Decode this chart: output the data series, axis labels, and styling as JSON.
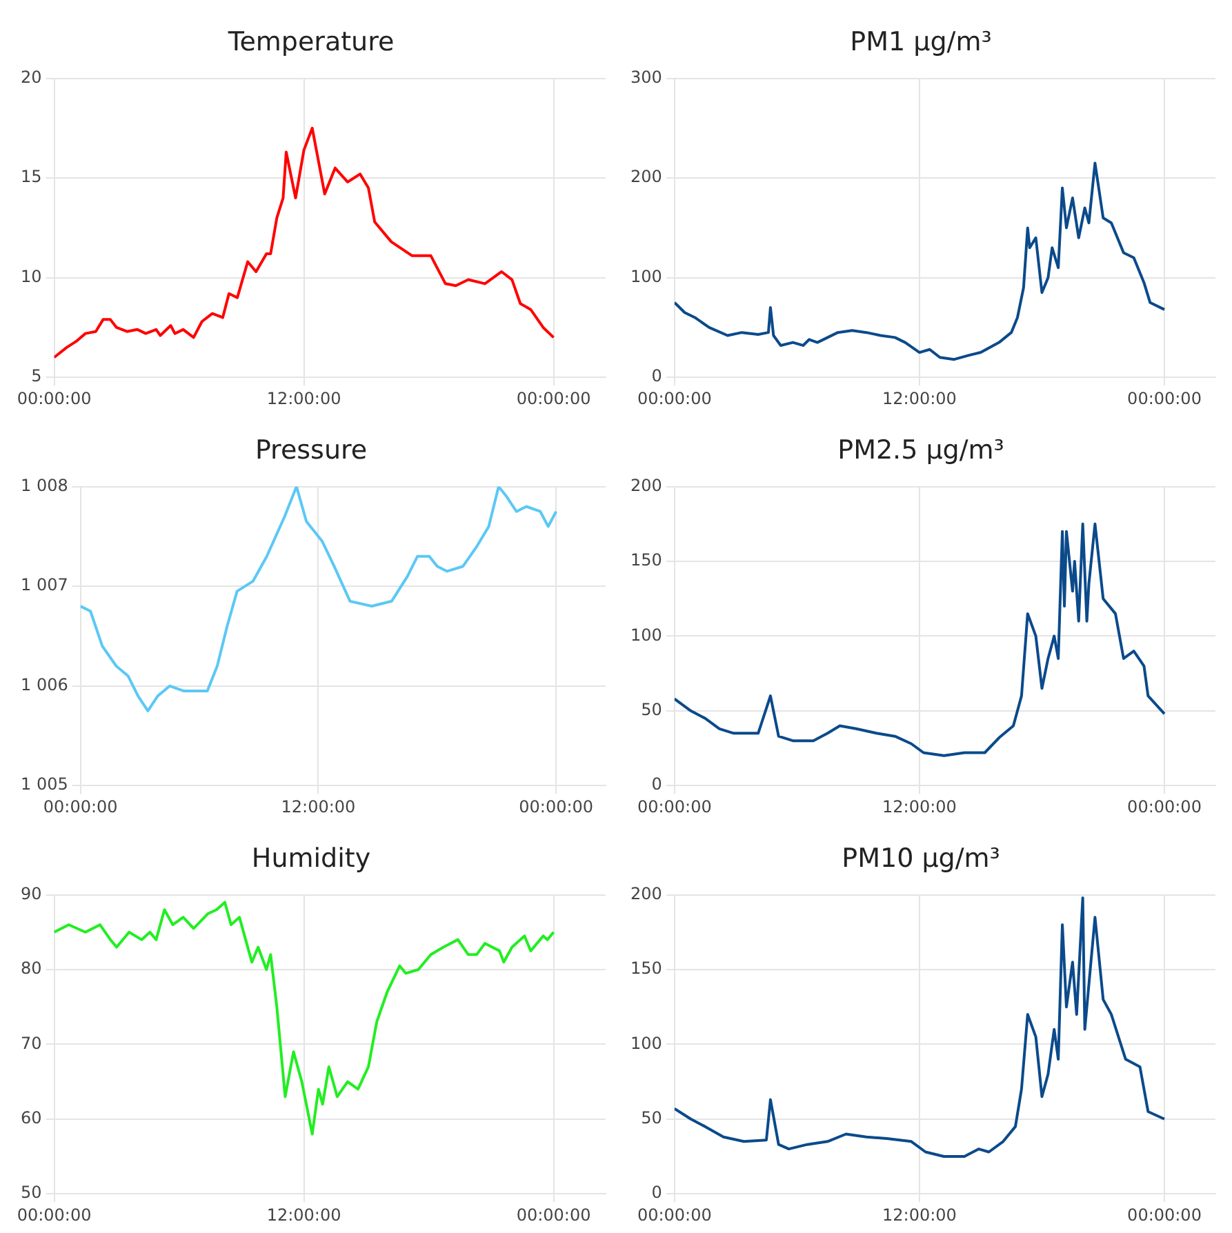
{
  "chart_data": [
    {
      "type": "line",
      "title": "Temperature",
      "marker": "none",
      "grid": true,
      "xlim": [
        "--01-01T00:00",
        "--01-02T02:30"
      ],
      "xticks": [
        {
          "value": "--01-01T00:00",
          "label": "00:00:00"
        },
        {
          "value": "--01-01T12:00",
          "label": "12:00:00"
        },
        {
          "value": "--01-02T00:00",
          "label": "00:00:00"
        }
      ],
      "ylim": [
        5,
        20
      ],
      "yticks": [
        5,
        10,
        15,
        20
      ],
      "x": [
        "--01-01T00:00",
        "--01-01T00:36",
        "--01-01T01:03",
        "--01-01T01:30",
        "--01-01T02:00",
        "--01-01T02:21",
        "--01-01T02:42",
        "--01-01T03:00",
        "--01-01T03:30",
        "--01-01T04:00",
        "--01-01T04:24",
        "--01-01T04:54",
        "--01-01T05:06",
        "--01-01T05:36",
        "--01-01T05:48",
        "--01-01T06:12",
        "--01-01T06:42",
        "--01-01T07:06",
        "--01-01T07:36",
        "--01-01T08:06",
        "--01-01T08:24",
        "--01-01T08:48",
        "--01-01T09:18",
        "--01-01T09:42",
        "--01-01T10:12",
        "--01-01T10:24",
        "--01-01T10:42",
        "--01-01T11:00",
        "--01-01T11:09",
        "--01-01T11:36",
        "--01-01T12:00",
        "--01-01T12:24",
        "--01-01T13:00",
        "--01-01T13:30",
        "--01-01T14:06",
        "--01-01T14:42",
        "--01-01T15:06",
        "--01-01T15:24",
        "--01-01T16:12",
        "--01-01T17:12",
        "--01-01T18:06",
        "--01-01T18:48",
        "--01-01T19:18",
        "--01-01T19:54",
        "--01-01T20:42",
        "--01-01T21:30",
        "--01-01T22:00",
        "--01-01T22:24",
        "--01-01T22:54",
        "--01-01T23:30",
        "--01-02T00:00"
      ],
      "series": [
        {
          "color": "#ff0000",
          "values": [
            6.0,
            6.5,
            6.8,
            7.2,
            7.3,
            7.9,
            7.9,
            7.5,
            7.3,
            7.4,
            7.2,
            7.4,
            7.1,
            7.6,
            7.2,
            7.4,
            7.0,
            7.8,
            8.2,
            8.0,
            9.2,
            9.0,
            10.8,
            10.3,
            11.2,
            11.2,
            13.0,
            14.0,
            16.3,
            14.0,
            16.4,
            17.5,
            14.2,
            15.5,
            14.8,
            15.2,
            14.5,
            12.8,
            11.8,
            11.1,
            11.1,
            9.7,
            9.6,
            9.9,
            9.7,
            10.3,
            9.9,
            8.7,
            8.4,
            7.5,
            7.0
          ]
        }
      ]
    },
    {
      "type": "line",
      "title": "PM1 μg/m³",
      "marker": "none",
      "grid": true,
      "xlim": [
        "--01-01T00:00",
        "--01-02T02:30"
      ],
      "xticks": [
        {
          "value": "--01-01T00:00",
          "label": "00:00:00"
        },
        {
          "value": "--01-01T12:00",
          "label": "12:00:00"
        },
        {
          "value": "--01-02T00:00",
          "label": "00:00:00"
        }
      ],
      "ylim": [
        0,
        300
      ],
      "yticks": [
        0,
        100,
        200,
        300
      ],
      "x": [
        "--01-01T00:00",
        "--01-01T00:30",
        "--01-01T01:00",
        "--01-01T01:42",
        "--01-01T02:36",
        "--01-01T03:18",
        "--01-01T04:06",
        "--01-01T04:36",
        "--01-01T04:42",
        "--01-01T04:51",
        "--01-01T05:12",
        "--01-01T05:48",
        "--01-01T06:18",
        "--01-01T06:36",
        "--01-01T07:00",
        "--01-01T08:00",
        "--01-01T08:42",
        "--01-01T09:24",
        "--01-01T10:06",
        "--01-01T10:48",
        "--01-01T11:18",
        "--01-01T12:00",
        "--01-01T12:30",
        "--01-01T13:00",
        "--01-01T13:42",
        "--01-01T14:24",
        "--01-01T15:00",
        "--01-01T15:54",
        "--01-01T16:30",
        "--01-01T16:48",
        "--01-01T17:06",
        "--01-01T17:18",
        "--01-01T17:24",
        "--01-01T17:42",
        "--01-01T18:00",
        "--01-01T18:18",
        "--01-01T18:30",
        "--01-01T18:48",
        "--01-01T19:00",
        "--01-01T19:12",
        "--01-01T19:30",
        "--01-01T19:48",
        "--01-01T20:06",
        "--01-01T20:18",
        "--01-01T20:36",
        "--01-01T21:00",
        "--01-01T21:24",
        "--01-01T22:00",
        "--01-01T22:30",
        "--01-01T23:00",
        "--01-01T23:18",
        "--01-02T00:00"
      ],
      "series": [
        {
          "color": "#0b4a8b",
          "values": [
            75,
            65,
            60,
            50,
            42,
            45,
            43,
            45,
            70,
            42,
            32,
            35,
            32,
            38,
            35,
            45,
            47,
            45,
            42,
            40,
            35,
            25,
            28,
            20,
            18,
            22,
            25,
            35,
            45,
            60,
            90,
            150,
            130,
            140,
            85,
            100,
            130,
            110,
            190,
            150,
            180,
            140,
            170,
            155,
            215,
            160,
            155,
            125,
            120,
            95,
            75,
            68
          ]
        }
      ]
    },
    {
      "type": "line",
      "title": "Pressure",
      "marker": "none",
      "grid": true,
      "xlim": [
        "--01-01T00:00",
        "--01-02T02:30"
      ],
      "xticks": [
        {
          "value": "--01-01T00:00",
          "label": "00:00:00"
        },
        {
          "value": "--01-01T12:00",
          "label": "12:00:00"
        },
        {
          "value": "--01-02T00:00",
          "label": "00:00:00"
        }
      ],
      "ylim": [
        1005,
        1008
      ],
      "yticks": [
        {
          "value": 1005,
          "label": "1 005"
        },
        {
          "value": 1006,
          "label": "1 006"
        },
        {
          "value": 1007,
          "label": "1 007"
        },
        {
          "value": 1008,
          "label": "1 008"
        }
      ],
      "x": [
        "--01-01T00:00",
        "--01-01T00:30",
        "--01-01T01:06",
        "--01-01T01:48",
        "--01-01T02:24",
        "--01-01T02:54",
        "--01-01T03:24",
        "--01-01T03:54",
        "--01-01T04:30",
        "--01-01T05:12",
        "--01-01T06:24",
        "--01-01T06:54",
        "--01-01T07:24",
        "--01-01T07:54",
        "--01-01T08:42",
        "--01-01T09:24",
        "--01-01T10:18",
        "--01-01T10:54",
        "--01-01T11:24",
        "--01-01T12:12",
        "--01-01T12:48",
        "--01-01T13:36",
        "--01-01T14:42",
        "--01-01T15:42",
        "--01-01T16:30",
        "--01-01T17:00",
        "--01-01T17:36",
        "--01-01T18:00",
        "--01-01T18:30",
        "--01-01T19:18",
        "--01-01T20:00",
        "--01-01T20:36",
        "--01-01T21:06",
        "--01-01T21:30",
        "--01-01T22:00",
        "--01-01T22:30",
        "--01-01T23:12",
        "--01-01T23:36",
        "--01-02T00:00"
      ],
      "series": [
        {
          "color": "#5bc8f5",
          "values": [
            1006.8,
            1006.75,
            1006.4,
            1006.2,
            1006.1,
            1005.9,
            1005.75,
            1005.9,
            1006.0,
            1005.95,
            1005.95,
            1006.2,
            1006.6,
            1006.95,
            1007.05,
            1007.3,
            1007.7,
            1008.0,
            1007.65,
            1007.45,
            1007.2,
            1006.85,
            1006.8,
            1006.85,
            1007.1,
            1007.3,
            1007.3,
            1007.2,
            1007.15,
            1007.2,
            1007.4,
            1007.6,
            1008.0,
            1007.9,
            1007.75,
            1007.8,
            1007.75,
            1007.6,
            1007.75
          ]
        }
      ]
    },
    {
      "type": "line",
      "title": "PM2.5 μg/m³",
      "marker": "none",
      "grid": true,
      "xlim": [
        "--01-01T00:00",
        "--01-02T02:30"
      ],
      "xticks": [
        {
          "value": "--01-01T00:00",
          "label": "00:00:00"
        },
        {
          "value": "--01-01T12:00",
          "label": "12:00:00"
        },
        {
          "value": "--01-02T00:00",
          "label": "00:00:00"
        }
      ],
      "ylim": [
        0,
        200
      ],
      "yticks": [
        0,
        50,
        100,
        150,
        200
      ],
      "x": [
        "--01-01T00:00",
        "--01-01T00:48",
        "--01-01T01:30",
        "--01-01T02:12",
        "--01-01T02:54",
        "--01-01T04:06",
        "--01-01T04:42",
        "--01-01T05:06",
        "--01-01T05:48",
        "--01-01T06:48",
        "--01-01T07:30",
        "--01-01T08:06",
        "--01-01T08:54",
        "--01-01T09:54",
        "--01-01T10:48",
        "--01-01T11:36",
        "--01-01T12:12",
        "--01-01T13:12",
        "--01-01T14:12",
        "--01-01T15:12",
        "--01-01T15:54",
        "--01-01T16:36",
        "--01-01T17:00",
        "--01-01T17:18",
        "--01-01T17:42",
        "--01-01T18:00",
        "--01-01T18:18",
        "--01-01T18:36",
        "--01-01T18:48",
        "--01-01T19:00",
        "--01-01T19:06",
        "--01-01T19:12",
        "--01-01T19:30",
        "--01-01T19:36",
        "--01-01T19:48",
        "--01-01T20:00",
        "--01-01T20:12",
        "--01-01T20:18",
        "--01-01T20:36",
        "--01-01T21:00",
        "--01-01T21:36",
        "--01-01T22:00",
        "--01-01T22:30",
        "--01-01T23:00",
        "--01-01T23:12",
        "--01-02T00:00"
      ],
      "series": [
        {
          "color": "#0b4a8b",
          "values": [
            58,
            50,
            45,
            38,
            35,
            35,
            60,
            33,
            30,
            30,
            35,
            40,
            38,
            35,
            33,
            28,
            22,
            20,
            22,
            22,
            32,
            40,
            60,
            115,
            100,
            65,
            85,
            100,
            85,
            170,
            120,
            170,
            130,
            150,
            110,
            175,
            110,
            135,
            175,
            125,
            115,
            85,
            90,
            80,
            60,
            48
          ]
        }
      ]
    },
    {
      "type": "line",
      "title": "Humidity",
      "marker": "none",
      "grid": true,
      "xlim": [
        "--01-01T00:00",
        "--01-02T02:30"
      ],
      "xticks": [
        {
          "value": "--01-01T00:00",
          "label": "00:00:00"
        },
        {
          "value": "--01-01T12:00",
          "label": "12:00:00"
        },
        {
          "value": "--01-02T00:00",
          "label": "00:00:00"
        }
      ],
      "ylim": [
        50,
        90
      ],
      "yticks": [
        50,
        60,
        70,
        80,
        90
      ],
      "x": [
        "--01-01T00:00",
        "--01-01T00:42",
        "--01-01T01:30",
        "--01-01T02:12",
        "--01-01T02:42",
        "--01-01T03:00",
        "--01-01T03:36",
        "--01-01T04:12",
        "--01-01T04:36",
        "--01-01T04:54",
        "--01-01T05:18",
        "--01-01T05:42",
        "--01-01T06:12",
        "--01-01T06:42",
        "--01-01T07:24",
        "--01-01T07:48",
        "--01-01T08:12",
        "--01-01T08:30",
        "--01-01T08:54",
        "--01-01T09:12",
        "--01-01T09:30",
        "--01-01T09:48",
        "--01-01T10:12",
        "--01-01T10:24",
        "--01-01T10:42",
        "--01-01T11:06",
        "--01-01T11:30",
        "--01-01T11:54",
        "--01-01T12:24",
        "--01-01T12:42",
        "--01-01T12:54",
        "--01-01T13:12",
        "--01-01T13:36",
        "--01-01T14:06",
        "--01-01T14:36",
        "--01-01T15:06",
        "--01-01T15:30",
        "--01-01T16:00",
        "--01-01T16:36",
        "--01-01T16:54",
        "--01-01T17:30",
        "--01-01T18:06",
        "--01-01T18:42",
        "--01-01T19:24",
        "--01-01T19:54",
        "--01-01T20:18",
        "--01-01T20:42",
        "--01-01T21:24",
        "--01-01T21:36",
        "--01-01T22:00",
        "--01-01T22:36",
        "--01-01T22:54",
        "--01-01T23:30",
        "--01-01T23:42",
        "--01-02T00:00"
      ],
      "series": [
        {
          "color": "#22ee22",
          "values": [
            85,
            86,
            85,
            86,
            84,
            83,
            85,
            84,
            85,
            84,
            88,
            86,
            87,
            85.5,
            87.5,
            88,
            89,
            86,
            87,
            84,
            81,
            83,
            80,
            82,
            75,
            63,
            69,
            65,
            58,
            64,
            62,
            67,
            63,
            65,
            64,
            67,
            73,
            77,
            80.5,
            79.5,
            80,
            82,
            83,
            84,
            82,
            82,
            83.5,
            82.5,
            81,
            83,
            84.5,
            82.5,
            84.5,
            84,
            85
          ]
        }
      ]
    },
    {
      "type": "line",
      "title": "PM10 μg/m³",
      "marker": "none",
      "grid": true,
      "xlim": [
        "--01-01T00:00",
        "--01-02T02:30"
      ],
      "xticks": [
        {
          "value": "--01-01T00:00",
          "label": "00:00:00"
        },
        {
          "value": "--01-01T12:00",
          "label": "12:00:00"
        },
        {
          "value": "--01-02T00:00",
          "label": "00:00:00"
        }
      ],
      "ylim": [
        0,
        200
      ],
      "yticks": [
        0,
        50,
        100,
        150,
        200
      ],
      "x": [
        "--01-01T00:00",
        "--01-01T00:48",
        "--01-01T01:30",
        "--01-01T02:24",
        "--01-01T03:24",
        "--01-01T04:30",
        "--01-01T04:42",
        "--01-01T05:06",
        "--01-01T05:36",
        "--01-01T06:30",
        "--01-01T07:30",
        "--01-01T08:24",
        "--01-01T09:24",
        "--01-01T10:24",
        "--01-01T11:36",
        "--01-01T12:18",
        "--01-01T13:12",
        "--01-01T14:12",
        "--01-01T14:54",
        "--01-01T15:24",
        "--01-01T16:06",
        "--01-01T16:42",
        "--01-01T17:00",
        "--01-01T17:18",
        "--01-01T17:42",
        "--01-01T18:00",
        "--01-01T18:18",
        "--01-01T18:36",
        "--01-01T18:48",
        "--01-01T19:00",
        "--01-01T19:12",
        "--01-01T19:30",
        "--01-01T19:42",
        "--01-01T20:00",
        "--01-01T20:06",
        "--01-01T20:18",
        "--01-01T20:36",
        "--01-01T21:00",
        "--01-01T21:24",
        "--01-01T22:06",
        "--01-01T22:48",
        "--01-01T23:12",
        "--01-02T00:00"
      ],
      "series": [
        {
          "color": "#0b4a8b",
          "values": [
            57,
            50,
            45,
            38,
            35,
            36,
            63,
            33,
            30,
            33,
            35,
            40,
            38,
            37,
            35,
            28,
            25,
            25,
            30,
            28,
            35,
            45,
            70,
            120,
            105,
            65,
            80,
            110,
            90,
            180,
            125,
            155,
            120,
            198,
            110,
            140,
            185,
            130,
            120,
            90,
            85,
            55,
            50
          ]
        }
      ]
    }
  ]
}
